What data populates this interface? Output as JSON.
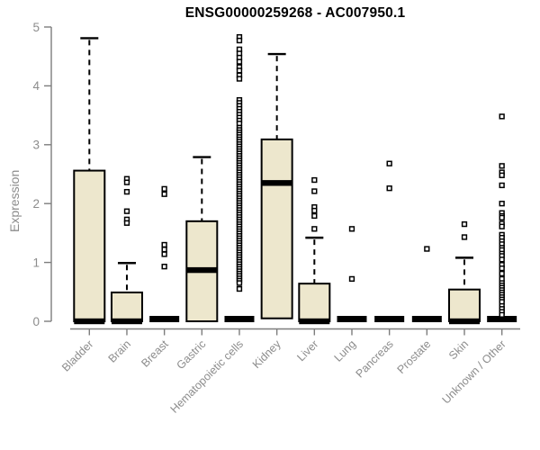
{
  "chart_data": {
    "type": "boxplot",
    "title": "ENSG00000259268 - AC007950.1",
    "ylabel": "Expression",
    "xlabel": "",
    "ylim": [
      0,
      5
    ],
    "yticks": [
      "0",
      "1",
      "2",
      "3",
      "4",
      "5"
    ],
    "grid": false,
    "legend": "none",
    "box_fill": "#ede7cd",
    "box_stroke": "#000000",
    "axis_color": "#7d7d7d",
    "label_color": "#8c8c8c",
    "categories": [
      "Bladder",
      "Brain",
      "Breast",
      "Gastric",
      "Hematopoietic cells",
      "Kidney",
      "Liver",
      "Lung",
      "Pancreas",
      "Prostate",
      "Skin",
      "Unknown / Other"
    ],
    "series": [
      {
        "category": "Bladder",
        "q1": 0,
        "median": 0,
        "q3": 2.56,
        "whisker_low": 0,
        "whisker_high": 4.81,
        "outliers": []
      },
      {
        "category": "Brain",
        "q1": 0,
        "median": 0,
        "q3": 0.49,
        "whisker_low": 0,
        "whisker_high": 0.99,
        "outliers": [
          2.42,
          2.36,
          2.2,
          1.87,
          1.73,
          1.67
        ]
      },
      {
        "category": "Breast",
        "q1": 0,
        "median": 0,
        "q3": 0,
        "whisker_low": 0,
        "whisker_high": 0,
        "outliers": [
          2.25,
          2.16,
          1.3,
          1.22,
          1.14,
          0.93
        ]
      },
      {
        "category": "Gastric",
        "q1": 0,
        "median": 0.87,
        "q3": 1.7,
        "whisker_low": 0,
        "whisker_high": 2.79,
        "outliers": []
      },
      {
        "category": "Hematopoietic cells",
        "q1": 0,
        "median": 0,
        "q3": 0,
        "whisker_low": 0,
        "whisker_high": 0,
        "outliers": [
          4.83,
          4.77,
          4.62,
          4.55,
          4.48,
          4.41,
          4.32,
          4.26,
          4.18,
          4.12,
          3.76,
          3.71,
          3.66,
          3.61,
          3.56,
          3.51,
          3.46,
          3.41,
          3.36,
          3.29,
          3.25,
          3.21,
          3.17,
          3.13,
          3.09,
          3.05,
          3.01,
          2.97,
          2.93,
          2.89,
          2.85,
          2.81,
          2.77,
          2.73,
          2.69,
          2.65,
          2.61,
          2.57,
          2.53,
          2.49,
          2.45,
          2.41,
          2.37,
          2.33,
          2.29,
          2.25,
          2.21,
          2.17,
          2.13,
          2.09,
          2.05,
          2.01,
          1.97,
          1.93,
          1.89,
          1.85,
          1.81,
          1.77,
          1.73,
          1.69,
          1.65,
          1.61,
          1.57,
          1.53,
          1.49,
          1.45,
          1.41,
          1.37,
          1.33,
          1.29,
          1.25,
          1.21,
          1.17,
          1.13,
          1.09,
          1.05,
          1.01,
          0.97,
          0.93,
          0.89,
          0.85,
          0.81,
          0.77,
          0.73,
          0.69,
          0.65,
          0.55
        ]
      },
      {
        "category": "Kidney",
        "q1": 0.05,
        "median": 2.35,
        "q3": 3.09,
        "whisker_low": 0.05,
        "whisker_high": 4.54,
        "outliers": []
      },
      {
        "category": "Liver",
        "q1": 0,
        "median": 0,
        "q3": 0.64,
        "whisker_low": 0,
        "whisker_high": 1.42,
        "outliers": [
          2.4,
          2.21,
          1.94,
          1.88,
          1.79,
          1.57
        ]
      },
      {
        "category": "Lung",
        "q1": 0,
        "median": 0,
        "q3": 0,
        "whisker_low": 0,
        "whisker_high": 0,
        "outliers": [
          1.57,
          0.72
        ]
      },
      {
        "category": "Pancreas",
        "q1": 0,
        "median": 0,
        "q3": 0,
        "whisker_low": 0,
        "whisker_high": 0,
        "outliers": [
          2.68,
          2.26
        ]
      },
      {
        "category": "Prostate",
        "q1": 0,
        "median": 0,
        "q3": 0,
        "whisker_low": 0,
        "whisker_high": 0,
        "outliers": [
          1.23
        ]
      },
      {
        "category": "Skin",
        "q1": 0,
        "median": 0,
        "q3": 0.54,
        "whisker_low": 0,
        "whisker_high": 1.08,
        "outliers": [
          1.65,
          1.43
        ]
      },
      {
        "category": "Unknown / Other",
        "q1": 0,
        "median": 0,
        "q3": 0,
        "whisker_low": 0,
        "whisker_high": 0,
        "outliers": [
          3.48,
          2.64,
          2.53,
          2.48,
          2.31,
          2.0,
          1.84,
          1.79,
          1.76,
          1.66,
          1.61,
          1.47,
          1.42,
          1.36,
          1.31,
          1.25,
          1.21,
          1.15,
          1.11,
          1.05,
          0.96,
          0.9,
          0.81,
          0.72,
          0.65,
          0.61,
          0.57,
          0.53,
          0.49,
          0.45,
          0.41,
          0.37,
          0.33,
          0.26,
          0.21,
          0.16,
          0.11
        ]
      }
    ]
  }
}
